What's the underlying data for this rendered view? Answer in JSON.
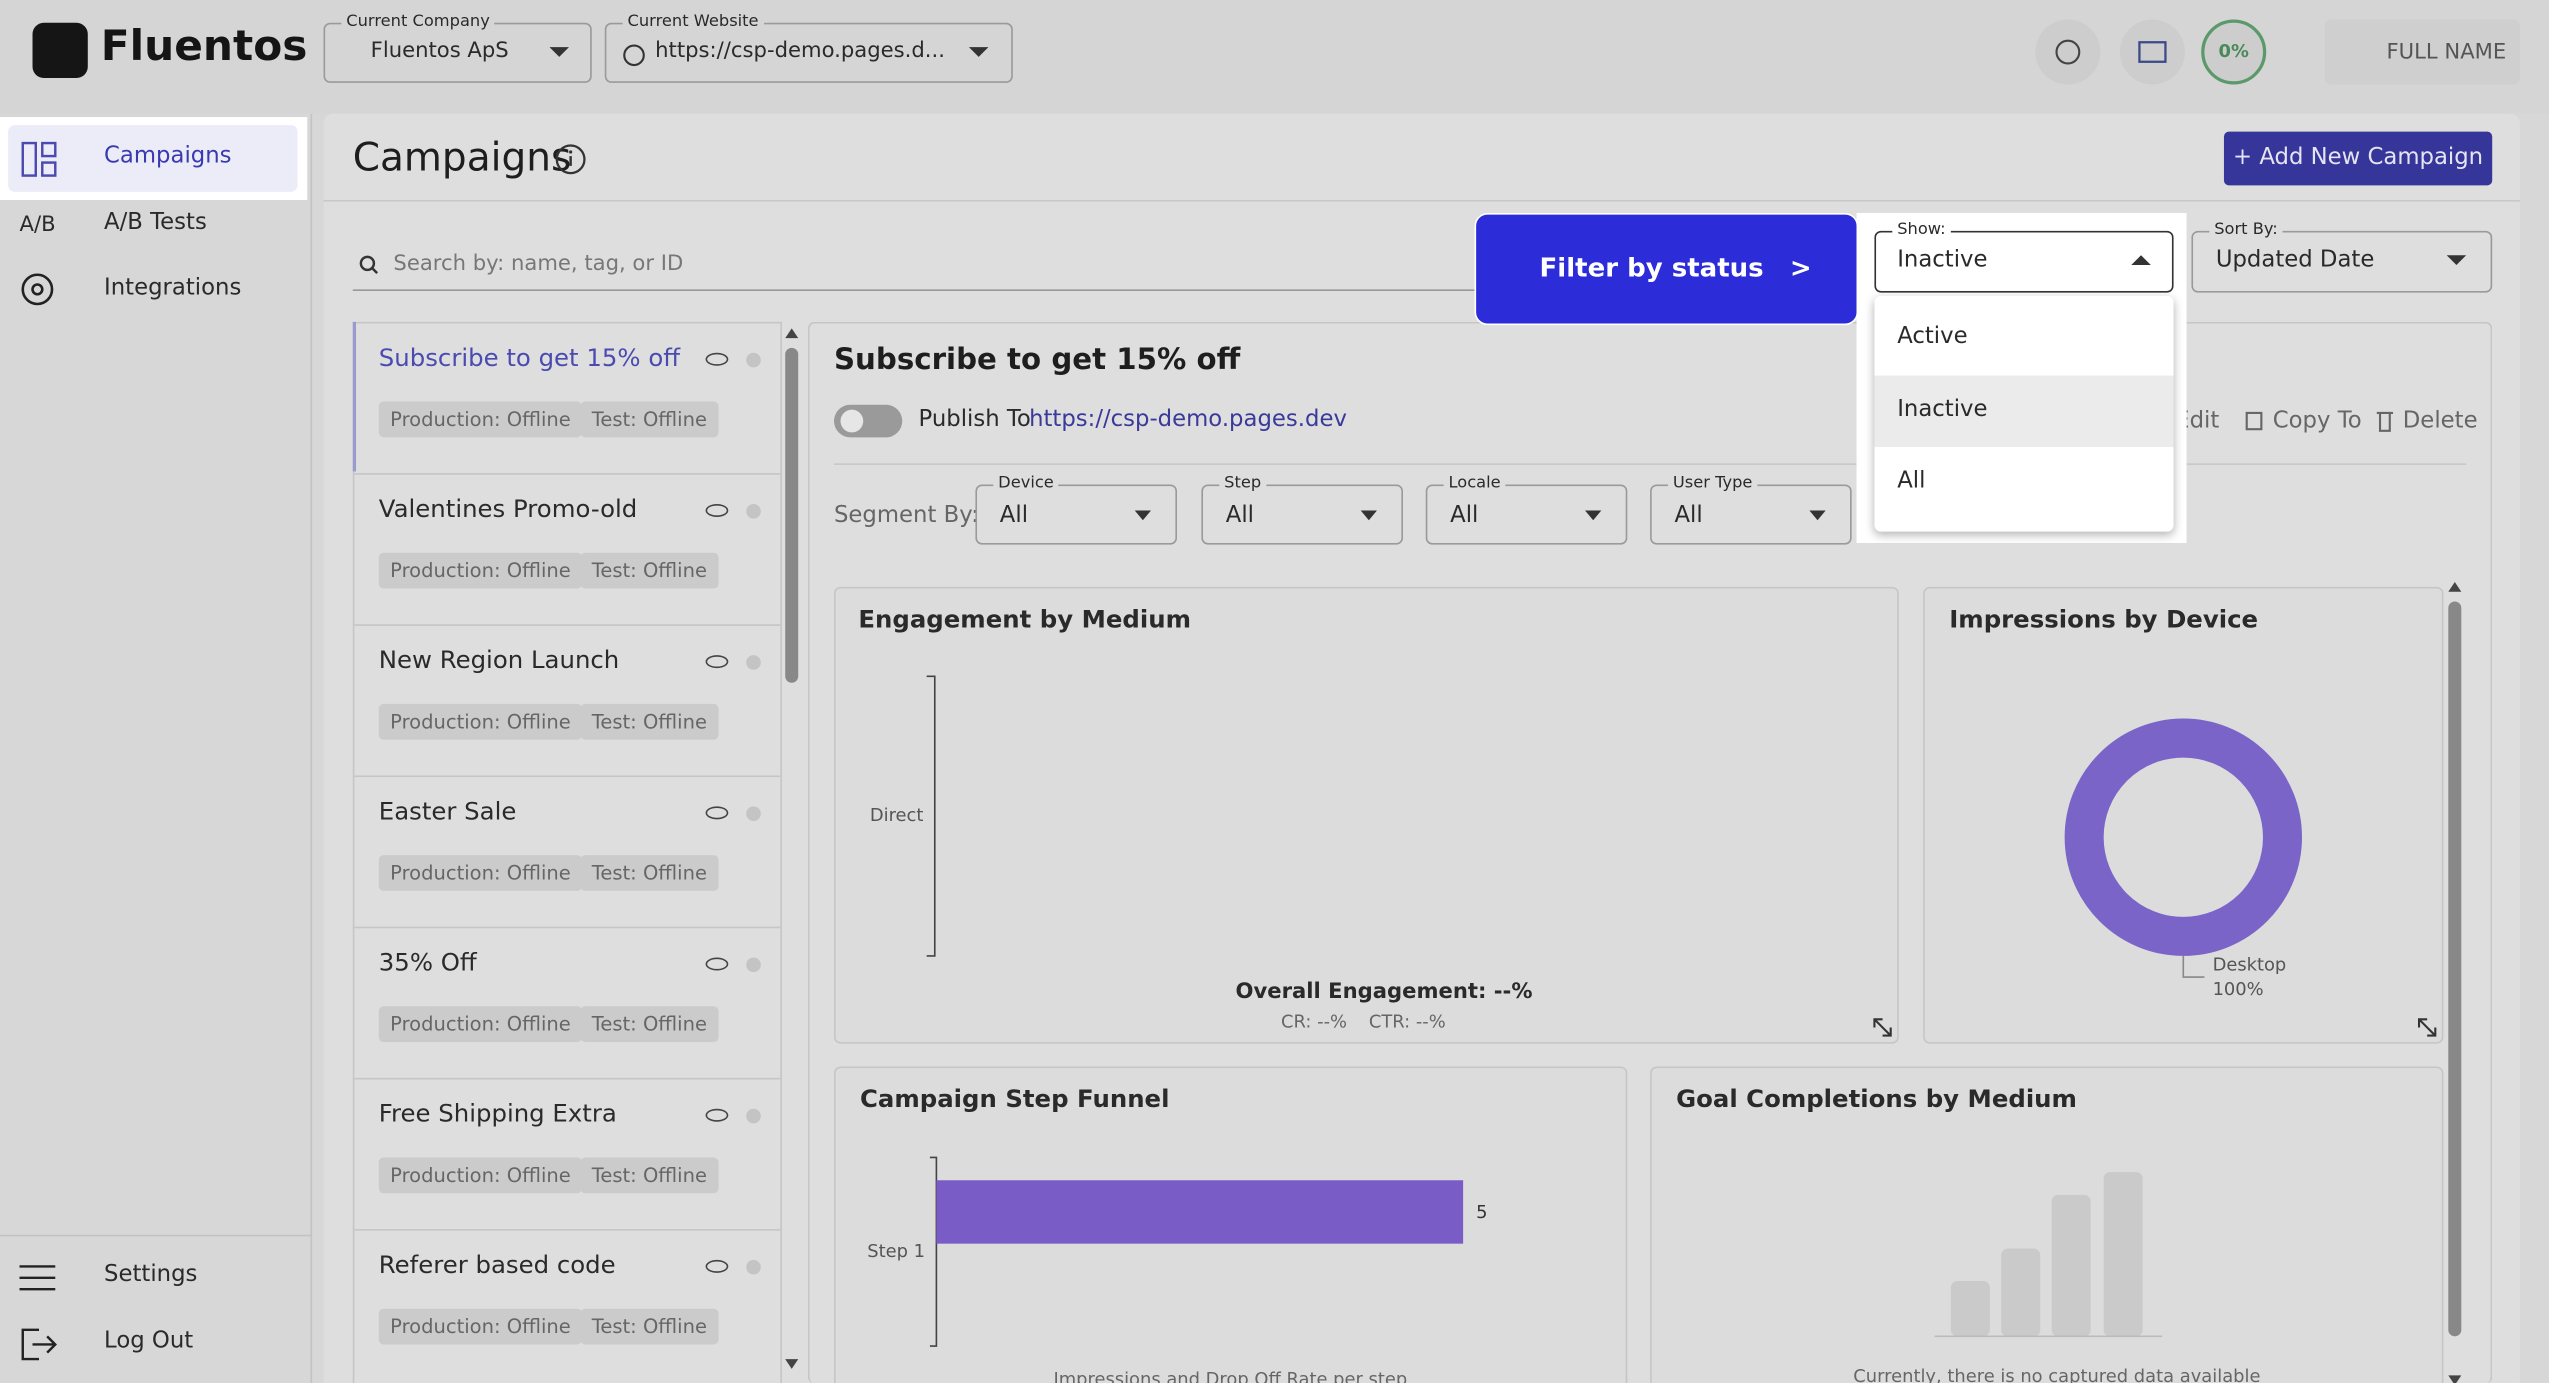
{
  "header": {
    "logo": "Fluentos",
    "company_label": "Current Company",
    "company": "Fluentos ApS",
    "website_label": "Current Website",
    "website": "https://csp-demo.pages.d...",
    "progress": "0%",
    "user": "FULL NAME"
  },
  "sidebar": {
    "items": [
      "Campaigns",
      "A/B Tests",
      "Integrations"
    ],
    "ab_icon": "A/B",
    "bottom": [
      "Settings",
      "Log Out"
    ]
  },
  "page": {
    "title": "Campaigns",
    "add_button": "+ Add New Campaign",
    "search_placeholder": "Search by: name, tag, or ID",
    "tooltip": "Filter by status",
    "tooltip_arrow": ">",
    "show_label": "Show:",
    "show_value": "Inactive",
    "show_options": [
      "Active",
      "Inactive",
      "All"
    ],
    "sort_label": "Sort By:",
    "sort_value": "Updated Date"
  },
  "campaigns": [
    {
      "name": "Subscribe to get 15% off",
      "production": "Production: Offline",
      "test": "Test: Offline"
    },
    {
      "name": "Valentines Promo-old",
      "production": "Production: Offline",
      "test": "Test: Offline"
    },
    {
      "name": "New Region Launch",
      "production": "Production: Offline",
      "test": "Test: Offline"
    },
    {
      "name": "Easter Sale",
      "production": "Production: Offline",
      "test": "Test: Offline"
    },
    {
      "name": "35% Off",
      "production": "Production: Offline",
      "test": "Test: Offline"
    },
    {
      "name": "Free Shipping Extra",
      "production": "Production: Offline",
      "test": "Test: Offline"
    },
    {
      "name": "Referer based code",
      "production": "Production: Offline",
      "test": "Test: Offline"
    }
  ],
  "detail": {
    "title": "Subscribe to get 15% off",
    "publish_label": "Publish To",
    "publish_url": "https://csp-demo.pages.dev",
    "actions": [
      "Edit",
      "Copy To",
      "Delete"
    ],
    "segment_label": "Segment By:",
    "segments": [
      {
        "label": "Device",
        "value": "All"
      },
      {
        "label": "Step",
        "value": "All"
      },
      {
        "label": "Locale",
        "value": "All"
      },
      {
        "label": "User Type",
        "value": "All"
      }
    ]
  },
  "engagement": {
    "title": "Engagement by Medium",
    "categories": [
      "Direct"
    ],
    "overall": "Overall Engagement: --%",
    "cr": "CR: --%",
    "ctr": "CTR: --%"
  },
  "device": {
    "title": "Impressions by Device",
    "labels": [
      "Desktop"
    ],
    "values": [
      100
    ],
    "value_labels": [
      "100%"
    ]
  },
  "funnel": {
    "title": "Campaign Step Funnel",
    "categories": [
      "Step 1"
    ],
    "values": [
      5
    ],
    "xlabel": "Impressions and Drop Off Rate per step"
  },
  "goals": {
    "title": "Goal Completions by Medium",
    "empty": "Currently, there is no captured data available"
  }
}
